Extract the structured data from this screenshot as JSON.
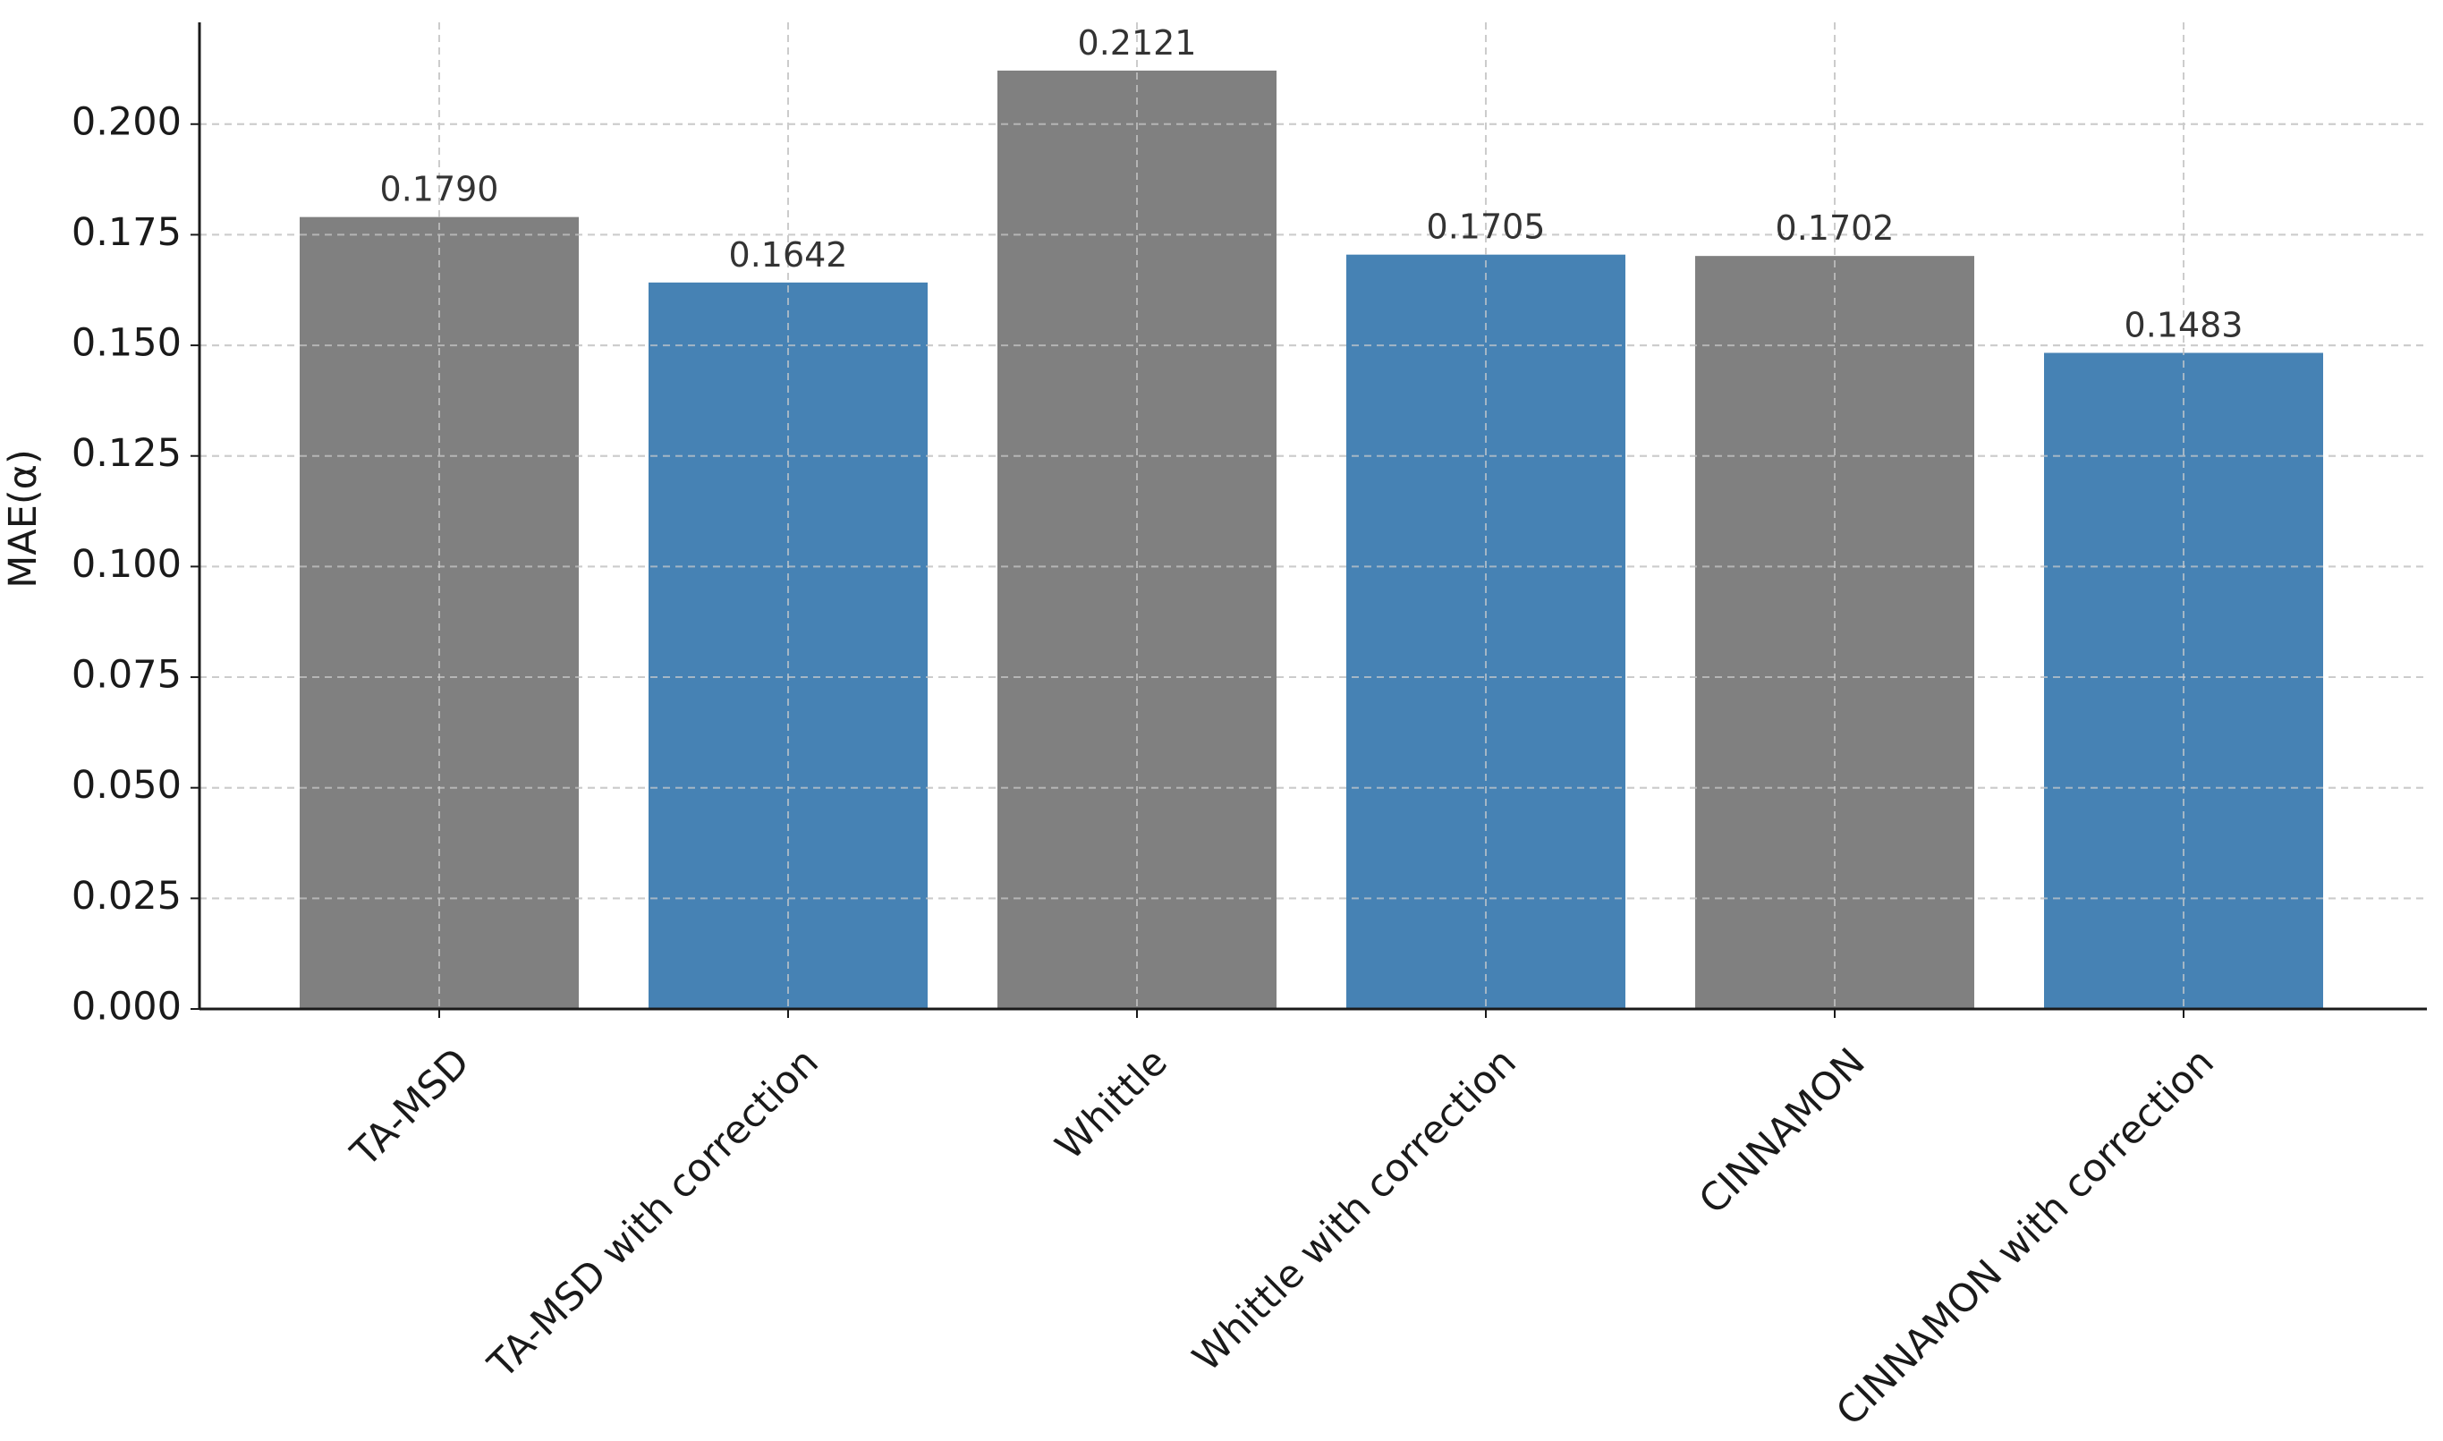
{
  "chart_data": {
    "type": "bar",
    "title": "",
    "xlabel": "",
    "ylabel": "MAE(α)",
    "categories": [
      "TA-MSD",
      "TA-MSD with correction",
      "Whittle",
      "Whittle with correction",
      "CINNAMON",
      "CINNAMON with correction"
    ],
    "values": [
      0.179,
      0.1642,
      0.2121,
      0.1705,
      0.1702,
      0.1483
    ],
    "value_labels": [
      "0.1790",
      "0.1642",
      "0.2121",
      "0.1705",
      "0.1702",
      "0.1483"
    ],
    "bar_colors": [
      "#808080",
      "#4682b4",
      "#808080",
      "#4682b4",
      "#808080",
      "#4682b4"
    ],
    "ylim": [
      0,
      0.223
    ],
    "yticks": [
      0.0,
      0.025,
      0.05,
      0.075,
      0.1,
      0.125,
      0.15,
      0.175,
      0.2
    ],
    "ytick_labels": [
      "0.000",
      "0.025",
      "0.050",
      "0.075",
      "0.100",
      "0.125",
      "0.150",
      "0.175",
      "0.200"
    ],
    "grid": true,
    "grid_color": "#cccccc",
    "axis_color": "#1a1a1a",
    "legend": "none"
  }
}
